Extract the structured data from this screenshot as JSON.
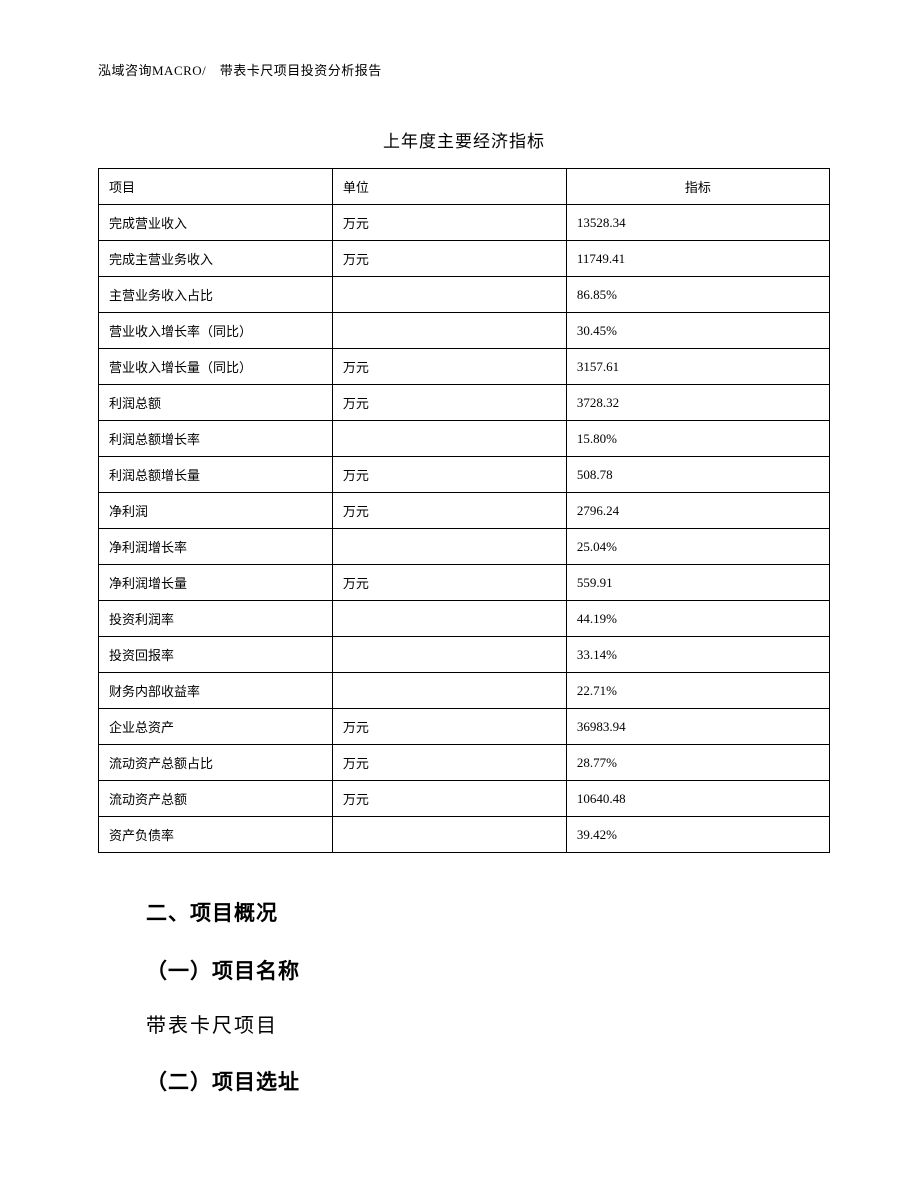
{
  "header": "泓域咨询MACRO/　带表卡尺项目投资分析报告",
  "table": {
    "title": "上年度主要经济指标",
    "columns": [
      "项目",
      "单位",
      "指标"
    ],
    "rows": [
      {
        "item": "完成营业收入",
        "unit": "万元",
        "value": "13528.34"
      },
      {
        "item": "完成主营业务收入",
        "unit": "万元",
        "value": "11749.41"
      },
      {
        "item": "主营业务收入占比",
        "unit": "",
        "value": "86.85%"
      },
      {
        "item": "营业收入增长率（同比）",
        "unit": "",
        "value": "30.45%"
      },
      {
        "item": "营业收入增长量（同比）",
        "unit": "万元",
        "value": "3157.61"
      },
      {
        "item": "利润总额",
        "unit": "万元",
        "value": "3728.32"
      },
      {
        "item": "利润总额增长率",
        "unit": "",
        "value": "15.80%"
      },
      {
        "item": "利润总额增长量",
        "unit": "万元",
        "value": "508.78"
      },
      {
        "item": "净利润",
        "unit": "万元",
        "value": "2796.24"
      },
      {
        "item": "净利润增长率",
        "unit": "",
        "value": "25.04%"
      },
      {
        "item": "净利润增长量",
        "unit": "万元",
        "value": "559.91"
      },
      {
        "item": "投资利润率",
        "unit": "",
        "value": "44.19%"
      },
      {
        "item": "投资回报率",
        "unit": "",
        "value": "33.14%"
      },
      {
        "item": "财务内部收益率",
        "unit": "",
        "value": "22.71%"
      },
      {
        "item": "企业总资产",
        "unit": "万元",
        "value": "36983.94"
      },
      {
        "item": "流动资产总额占比",
        "unit": "万元",
        "value": "28.77%"
      },
      {
        "item": "流动资产总额",
        "unit": "万元",
        "value": "10640.48"
      },
      {
        "item": "资产负债率",
        "unit": "",
        "value": "39.42%"
      }
    ],
    "col_widths": [
      "32%",
      "32%",
      "36%"
    ]
  },
  "sections": {
    "section2_title": "二、项目概况",
    "sub1_title": "（一）项目名称",
    "sub1_text": "带表卡尺项目",
    "sub2_title": "（二）项目选址"
  },
  "colors": {
    "text": "#000000",
    "bg": "#ffffff",
    "border": "#000000"
  }
}
